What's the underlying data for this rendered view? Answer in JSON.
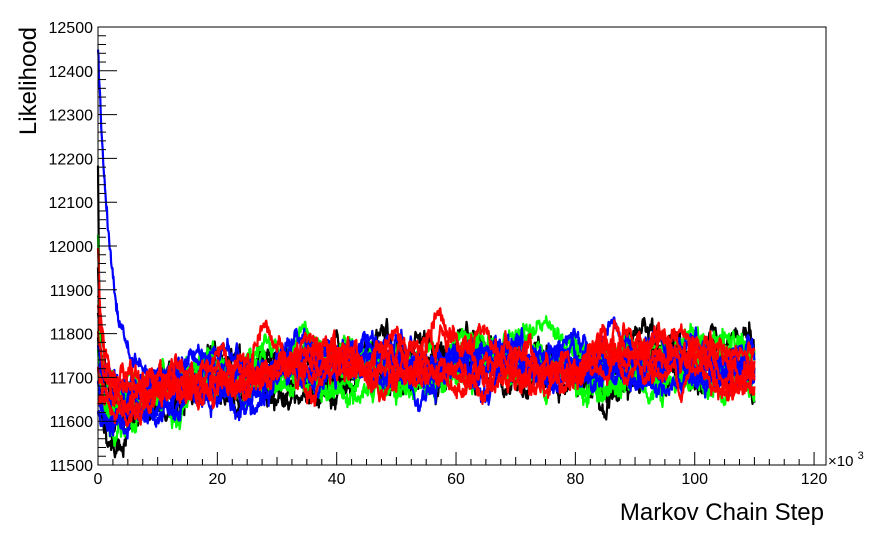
{
  "chart_data": {
    "type": "line",
    "title": "",
    "xlabel": "Markov Chain Step",
    "ylabel": "Likelihood",
    "x_multiplier_label": "×10",
    "x_multiplier_exponent": "3",
    "xlim": [
      0,
      122
    ],
    "ylim": [
      11500,
      12500
    ],
    "xticks": [
      0,
      20,
      40,
      60,
      80,
      100,
      120
    ],
    "yticks": [
      11500,
      11600,
      11700,
      11800,
      11900,
      12000,
      12100,
      12200,
      12300,
      12400,
      12500
    ],
    "grid": false,
    "legend": "none",
    "x_range_of_chains": [
      0,
      110
    ],
    "series": [
      {
        "color": "#000000",
        "start": 12180,
        "minimum": 11560,
        "min_at": 1.5,
        "plateau": 11720,
        "noise": 18
      },
      {
        "color": "#000000",
        "start": 11950,
        "minimum": 11600,
        "min_at": 3,
        "plateau": 11700,
        "noise": 15
      },
      {
        "color": "#000000",
        "start": 11850,
        "minimum": 11640,
        "min_at": 6,
        "plateau": 11740,
        "noise": 16
      },
      {
        "color": "#000000",
        "start": 11780,
        "minimum": 11620,
        "min_at": 4,
        "plateau": 11710,
        "noise": 15
      },
      {
        "color": "#000000",
        "start": 11900,
        "minimum": 11660,
        "min_at": 8,
        "plateau": 11750,
        "noise": 15
      },
      {
        "color": "#00ff00",
        "start": 12030,
        "minimum": 11590,
        "min_at": 2,
        "plateau": 11730,
        "noise": 17
      },
      {
        "color": "#00ff00",
        "start": 11760,
        "minimum": 11610,
        "min_at": 3,
        "plateau": 11700,
        "noise": 16
      },
      {
        "color": "#00ff00",
        "start": 11700,
        "minimum": 11630,
        "min_at": 4,
        "plateau": 11760,
        "noise": 14
      },
      {
        "color": "#00ff00",
        "start": 11820,
        "minimum": 11650,
        "min_at": 5,
        "plateau": 11710,
        "noise": 16
      },
      {
        "color": "#00ff00",
        "start": 11730,
        "minimum": 11600,
        "min_at": 3,
        "plateau": 11740,
        "noise": 15
      },
      {
        "color": "#0000ff",
        "start": 12460,
        "minimum": 11700,
        "min_at": 9,
        "plateau": 11730,
        "noise": 15
      },
      {
        "color": "#0000ff",
        "start": 11650,
        "minimum": 11590,
        "min_at": 2,
        "plateau": 11720,
        "noise": 16
      },
      {
        "color": "#0000ff",
        "start": 11700,
        "minimum": 11610,
        "min_at": 3,
        "plateau": 11740,
        "noise": 15
      },
      {
        "color": "#0000ff",
        "start": 11780,
        "minimum": 11620,
        "min_at": 4,
        "plateau": 11710,
        "noise": 15
      },
      {
        "color": "#0000ff",
        "start": 11620,
        "minimum": 11600,
        "min_at": 2,
        "plateau": 11750,
        "noise": 14
      },
      {
        "color": "#0000ff",
        "start": 11720,
        "minimum": 11640,
        "min_at": 5,
        "plateau": 11725,
        "noise": 15
      },
      {
        "color": "#ff0000",
        "start": 12000,
        "minimum": 11620,
        "min_at": 3,
        "plateau": 11750,
        "noise": 17
      },
      {
        "color": "#ff0000",
        "start": 11800,
        "minimum": 11630,
        "min_at": 4,
        "plateau": 11720,
        "noise": 16
      },
      {
        "color": "#ff0000",
        "start": 11720,
        "minimum": 11640,
        "min_at": 5,
        "plateau": 11735,
        "noise": 15
      },
      {
        "color": "#ff0000",
        "start": 11650,
        "minimum": 11610,
        "min_at": 3,
        "plateau": 11710,
        "noise": 15
      },
      {
        "color": "#ff0000",
        "start": 11850,
        "minimum": 11650,
        "min_at": 6,
        "plateau": 11745,
        "noise": 16
      }
    ]
  }
}
